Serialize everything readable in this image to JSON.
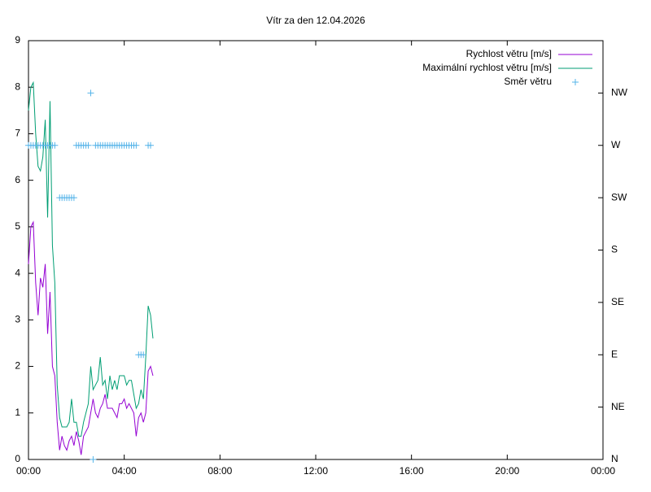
{
  "chart_data": {
    "type": "line",
    "title": "Vítr za den 12.04.2026",
    "x": [
      0,
      0.1,
      0.2,
      0.3,
      0.4,
      0.5,
      0.6,
      0.7,
      0.8,
      0.9,
      1.0,
      1.1,
      1.2,
      1.3,
      1.4,
      1.5,
      1.6,
      1.7,
      1.8,
      1.9,
      2.0,
      2.1,
      2.2,
      2.3,
      2.4,
      2.5,
      2.6,
      2.7,
      2.8,
      2.9,
      3.0,
      3.1,
      3.2,
      3.3,
      3.4,
      3.5,
      3.6,
      3.7,
      3.8,
      3.9,
      4.0,
      4.1,
      4.2,
      4.3,
      4.4,
      4.5,
      4.6,
      4.7,
      4.8,
      4.9,
      5.0,
      5.1,
      5.2
    ],
    "xlim": [
      0,
      24
    ],
    "xticks": [
      {
        "value": 0,
        "label": "00:00"
      },
      {
        "value": 4,
        "label": "04:00"
      },
      {
        "value": 8,
        "label": "08:00"
      },
      {
        "value": 12,
        "label": "12:00"
      },
      {
        "value": 16,
        "label": "16:00"
      },
      {
        "value": 20,
        "label": "20:00"
      },
      {
        "value": 24,
        "label": "00:00"
      }
    ],
    "ylim": [
      0,
      9
    ],
    "yticks": [
      0,
      1,
      2,
      3,
      4,
      5,
      6,
      7,
      8,
      9
    ],
    "y2lim": [
      0,
      360
    ],
    "y2ticks": [
      {
        "value": 0,
        "label": "N"
      },
      {
        "value": 45,
        "label": "NE"
      },
      {
        "value": 90,
        "label": "E"
      },
      {
        "value": 135,
        "label": "SE"
      },
      {
        "value": 180,
        "label": "S"
      },
      {
        "value": 225,
        "label": "SW"
      },
      {
        "value": 270,
        "label": "W"
      },
      {
        "value": 315,
        "label": "NW"
      }
    ],
    "legend": "top right",
    "series": [
      {
        "name": "Rychlost větru [m/s]",
        "color": "#9400d3",
        "style": "line",
        "values": [
          4.2,
          5.0,
          5.1,
          3.8,
          3.1,
          3.9,
          3.7,
          4.2,
          2.7,
          3.6,
          2.0,
          1.8,
          0.8,
          0.2,
          0.5,
          0.3,
          0.2,
          0.4,
          0.5,
          0.3,
          0.6,
          0.4,
          0.1,
          0.5,
          0.6,
          0.7,
          1.0,
          1.3,
          1.0,
          0.9,
          1.1,
          1.2,
          1.4,
          1.1,
          1.1,
          1.1,
          1.0,
          0.9,
          1.2,
          1.2,
          1.3,
          1.1,
          1.2,
          1.1,
          1.0,
          0.5,
          0.9,
          1.0,
          0.8,
          1.0,
          1.9,
          2.0,
          1.8
        ]
      },
      {
        "name": "Maximální rychlost větru [m/s]",
        "color": "#009e73",
        "style": "line",
        "values": [
          7.5,
          8.0,
          8.1,
          7.0,
          6.3,
          6.2,
          6.5,
          7.3,
          5.2,
          7.7,
          4.6,
          3.8,
          1.6,
          0.9,
          0.7,
          0.7,
          0.7,
          0.8,
          1.3,
          0.8,
          0.8,
          0.5,
          0.5,
          0.8,
          1.0,
          1.2,
          2.0,
          1.5,
          1.6,
          1.7,
          2.2,
          1.6,
          1.7,
          1.3,
          1.8,
          1.5,
          1.7,
          1.5,
          1.8,
          1.8,
          1.8,
          1.6,
          1.7,
          1.7,
          1.4,
          1.1,
          1.2,
          1.5,
          1.3,
          2.2,
          3.3,
          3.1,
          2.6
        ]
      },
      {
        "name": "Směr větru",
        "color": "#56b4e9",
        "style": "points",
        "axis": "y2",
        "values": [
          270,
          270,
          270,
          270,
          270,
          270,
          270,
          270,
          270,
          270,
          270,
          270,
          null,
          225,
          225,
          225,
          225,
          225,
          225,
          225,
          270,
          270,
          270,
          270,
          270,
          270,
          315,
          0,
          270,
          270,
          270,
          270,
          270,
          270,
          270,
          270,
          270,
          270,
          270,
          270,
          270,
          270,
          270,
          270,
          270,
          270,
          90,
          90,
          90,
          null,
          270,
          270,
          null
        ]
      }
    ]
  }
}
